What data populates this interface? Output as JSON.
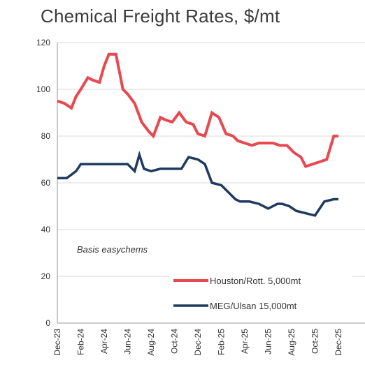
{
  "chart_data": {
    "type": "line",
    "title": "Chemical Freight Rates,  $/mt",
    "annotation": "Basis easychems",
    "ylim": [
      0,
      120
    ],
    "yticks": [
      0,
      20,
      40,
      60,
      80,
      100,
      120
    ],
    "grid": true,
    "legend_position": "bottom-right",
    "x_tick_labels": [
      "Dec-23",
      "Feb-24",
      "Apr-24",
      "Jun-24",
      "Aug-24",
      "Oct-24",
      "Dec-24",
      "Feb-25",
      "Apr-25",
      "Jun-25",
      "Aug-25",
      "Oct-25",
      "Dec-25"
    ],
    "series": [
      {
        "name": "Houston/Rott. 5,000mt",
        "color": "#e8484f",
        "x": [
          0.0,
          0.3,
          0.6,
          0.8,
          1.0,
          1.3,
          1.5,
          1.8,
          2.0,
          2.2,
          2.5,
          2.8,
          3.0,
          3.3,
          3.6,
          3.9,
          4.1,
          4.4,
          4.6,
          4.9,
          5.2,
          5.5,
          5.8,
          6.0,
          6.3,
          6.6,
          6.9,
          7.2,
          7.5,
          7.7,
          8.0,
          8.3,
          8.6,
          8.9,
          9.2,
          9.5,
          9.8,
          10.1,
          10.4,
          10.6,
          10.9,
          11.2,
          11.5,
          11.8,
          12.0
        ],
        "y": [
          95,
          94,
          92,
          97,
          100,
          105,
          104,
          103,
          110,
          115,
          115,
          100,
          98,
          94,
          86,
          82,
          80,
          88,
          87,
          86,
          90,
          86,
          85,
          81,
          80,
          90,
          88,
          81,
          80,
          78,
          77,
          76,
          77,
          77,
          77,
          76,
          76,
          73,
          71,
          67,
          68,
          69,
          70,
          80,
          80
        ]
      },
      {
        "name": "MEG/Ulsan 15,000mt",
        "color": "#1f3a5f",
        "x": [
          0.0,
          0.4,
          0.8,
          1.0,
          1.5,
          2.0,
          2.5,
          3.0,
          3.3,
          3.5,
          3.7,
          4.0,
          4.4,
          4.8,
          5.0,
          5.3,
          5.6,
          6.0,
          6.3,
          6.6,
          7.0,
          7.3,
          7.6,
          7.8,
          8.2,
          8.6,
          9.0,
          9.4,
          9.6,
          9.9,
          10.2,
          10.6,
          11.0,
          11.4,
          11.8,
          12.0
        ],
        "y": [
          62,
          62,
          65,
          68,
          68,
          68,
          68,
          68,
          65,
          72,
          66,
          65,
          66,
          66,
          66,
          66,
          71,
          70,
          68,
          60,
          59,
          56,
          53,
          52,
          52,
          51,
          49,
          51,
          51,
          50,
          48,
          47,
          46,
          52,
          53,
          53
        ]
      }
    ]
  }
}
